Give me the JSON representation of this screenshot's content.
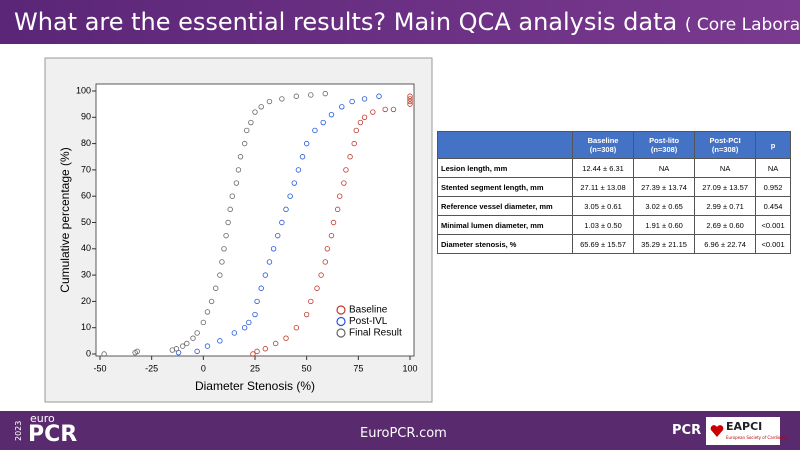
{
  "header": {
    "title": "What are the essential results? Main QCA analysis data",
    "subtitle": "( Core Laboratory)"
  },
  "chart_data": {
    "type": "scatter",
    "x_label": "Diameter Stenosis (%)",
    "y_label": "Cumulative percentage (%)",
    "xlim": [
      -50,
      100
    ],
    "ylim": [
      0,
      100
    ],
    "xticks": [
      -50,
      -25,
      0,
      25,
      50,
      75,
      100
    ],
    "yticks": [
      0,
      10,
      20,
      30,
      40,
      50,
      60,
      70,
      80,
      90,
      100
    ],
    "legend": "lower right",
    "series": [
      {
        "name": "Baseline",
        "color": "#c0392b",
        "x": [
          24,
          26,
          30,
          35,
          40,
          45,
          50,
          52,
          55,
          57,
          59,
          60,
          62,
          63,
          65,
          66,
          68,
          69,
          71,
          73,
          74,
          76,
          78,
          82,
          88,
          92,
          100,
          100,
          100,
          100
        ],
        "values": [
          0,
          1,
          2,
          4,
          6,
          10,
          15,
          20,
          25,
          30,
          35,
          40,
          45,
          50,
          55,
          60,
          65,
          70,
          75,
          80,
          85,
          88,
          90,
          92,
          93,
          93,
          95,
          96,
          97,
          98
        ]
      },
      {
        "name": "Post-IVL",
        "color": "#2255dd",
        "x": [
          -12,
          -3,
          2,
          8,
          15,
          20,
          22,
          25,
          26,
          28,
          30,
          32,
          34,
          36,
          38,
          40,
          42,
          44,
          46,
          48,
          50,
          54,
          58,
          62,
          67,
          72,
          78,
          85
        ],
        "values": [
          0.5,
          1,
          3,
          5,
          8,
          10,
          12,
          15,
          20,
          25,
          30,
          35,
          40,
          45,
          50,
          55,
          60,
          65,
          70,
          75,
          80,
          85,
          88,
          91,
          94,
          96,
          97,
          98
        ]
      },
      {
        "name": "Final Result",
        "color": "#666666",
        "x": [
          -48,
          -33,
          -32,
          -15,
          -13,
          -10,
          -8,
          -5,
          -3,
          0,
          2,
          4,
          6,
          8,
          9,
          10,
          11,
          12,
          13,
          14,
          16,
          17,
          18,
          20,
          21,
          23,
          25,
          28,
          32,
          38,
          45,
          52,
          59
        ],
        "values": [
          0,
          0.5,
          1,
          1.5,
          2,
          3,
          4,
          6,
          8,
          12,
          16,
          20,
          25,
          30,
          35,
          40,
          45,
          50,
          55,
          60,
          65,
          70,
          75,
          80,
          85,
          88,
          92,
          94,
          96,
          97,
          98,
          98.5,
          99
        ]
      }
    ]
  },
  "table": {
    "header": [
      [
        "Baseline",
        "(n=308)"
      ],
      [
        "Post-lito",
        "(n=308)"
      ],
      [
        "Post-PCI",
        "(n=308)"
      ],
      [
        "p"
      ]
    ],
    "rows": [
      [
        "Lesion length, mm",
        "12.44 ± 6.31",
        "NA",
        "NA",
        "NA"
      ],
      [
        "Stented segment length, mm",
        "27.11 ± 13.08",
        "27.39 ± 13.74",
        "27.09 ± 13.57",
        "0.952"
      ],
      [
        "Reference vessel diameter, mm",
        "3.05 ± 0.61",
        "3.02 ± 0.65",
        "2.99 ± 0.71",
        "0.454"
      ],
      [
        "Minimal lumen diameter, mm",
        "1.03 ± 0.50",
        "1.91 ± 0.60",
        "2.69 ± 0.60",
        "<0.001"
      ],
      [
        "Diameter stenosis, %",
        "65.69 ± 15.57",
        "35.29 ± 21.15",
        "6.96 ± 22.74",
        "<0.001"
      ]
    ]
  },
  "footer": {
    "year": "2023",
    "logo_small": "euro",
    "logo_main": "PCR",
    "url": "EuroPCR.com",
    "pcr_logo": "PCR",
    "eapci_logo": "EAPCI",
    "eapci_sub": "European Society of Cardiology"
  }
}
